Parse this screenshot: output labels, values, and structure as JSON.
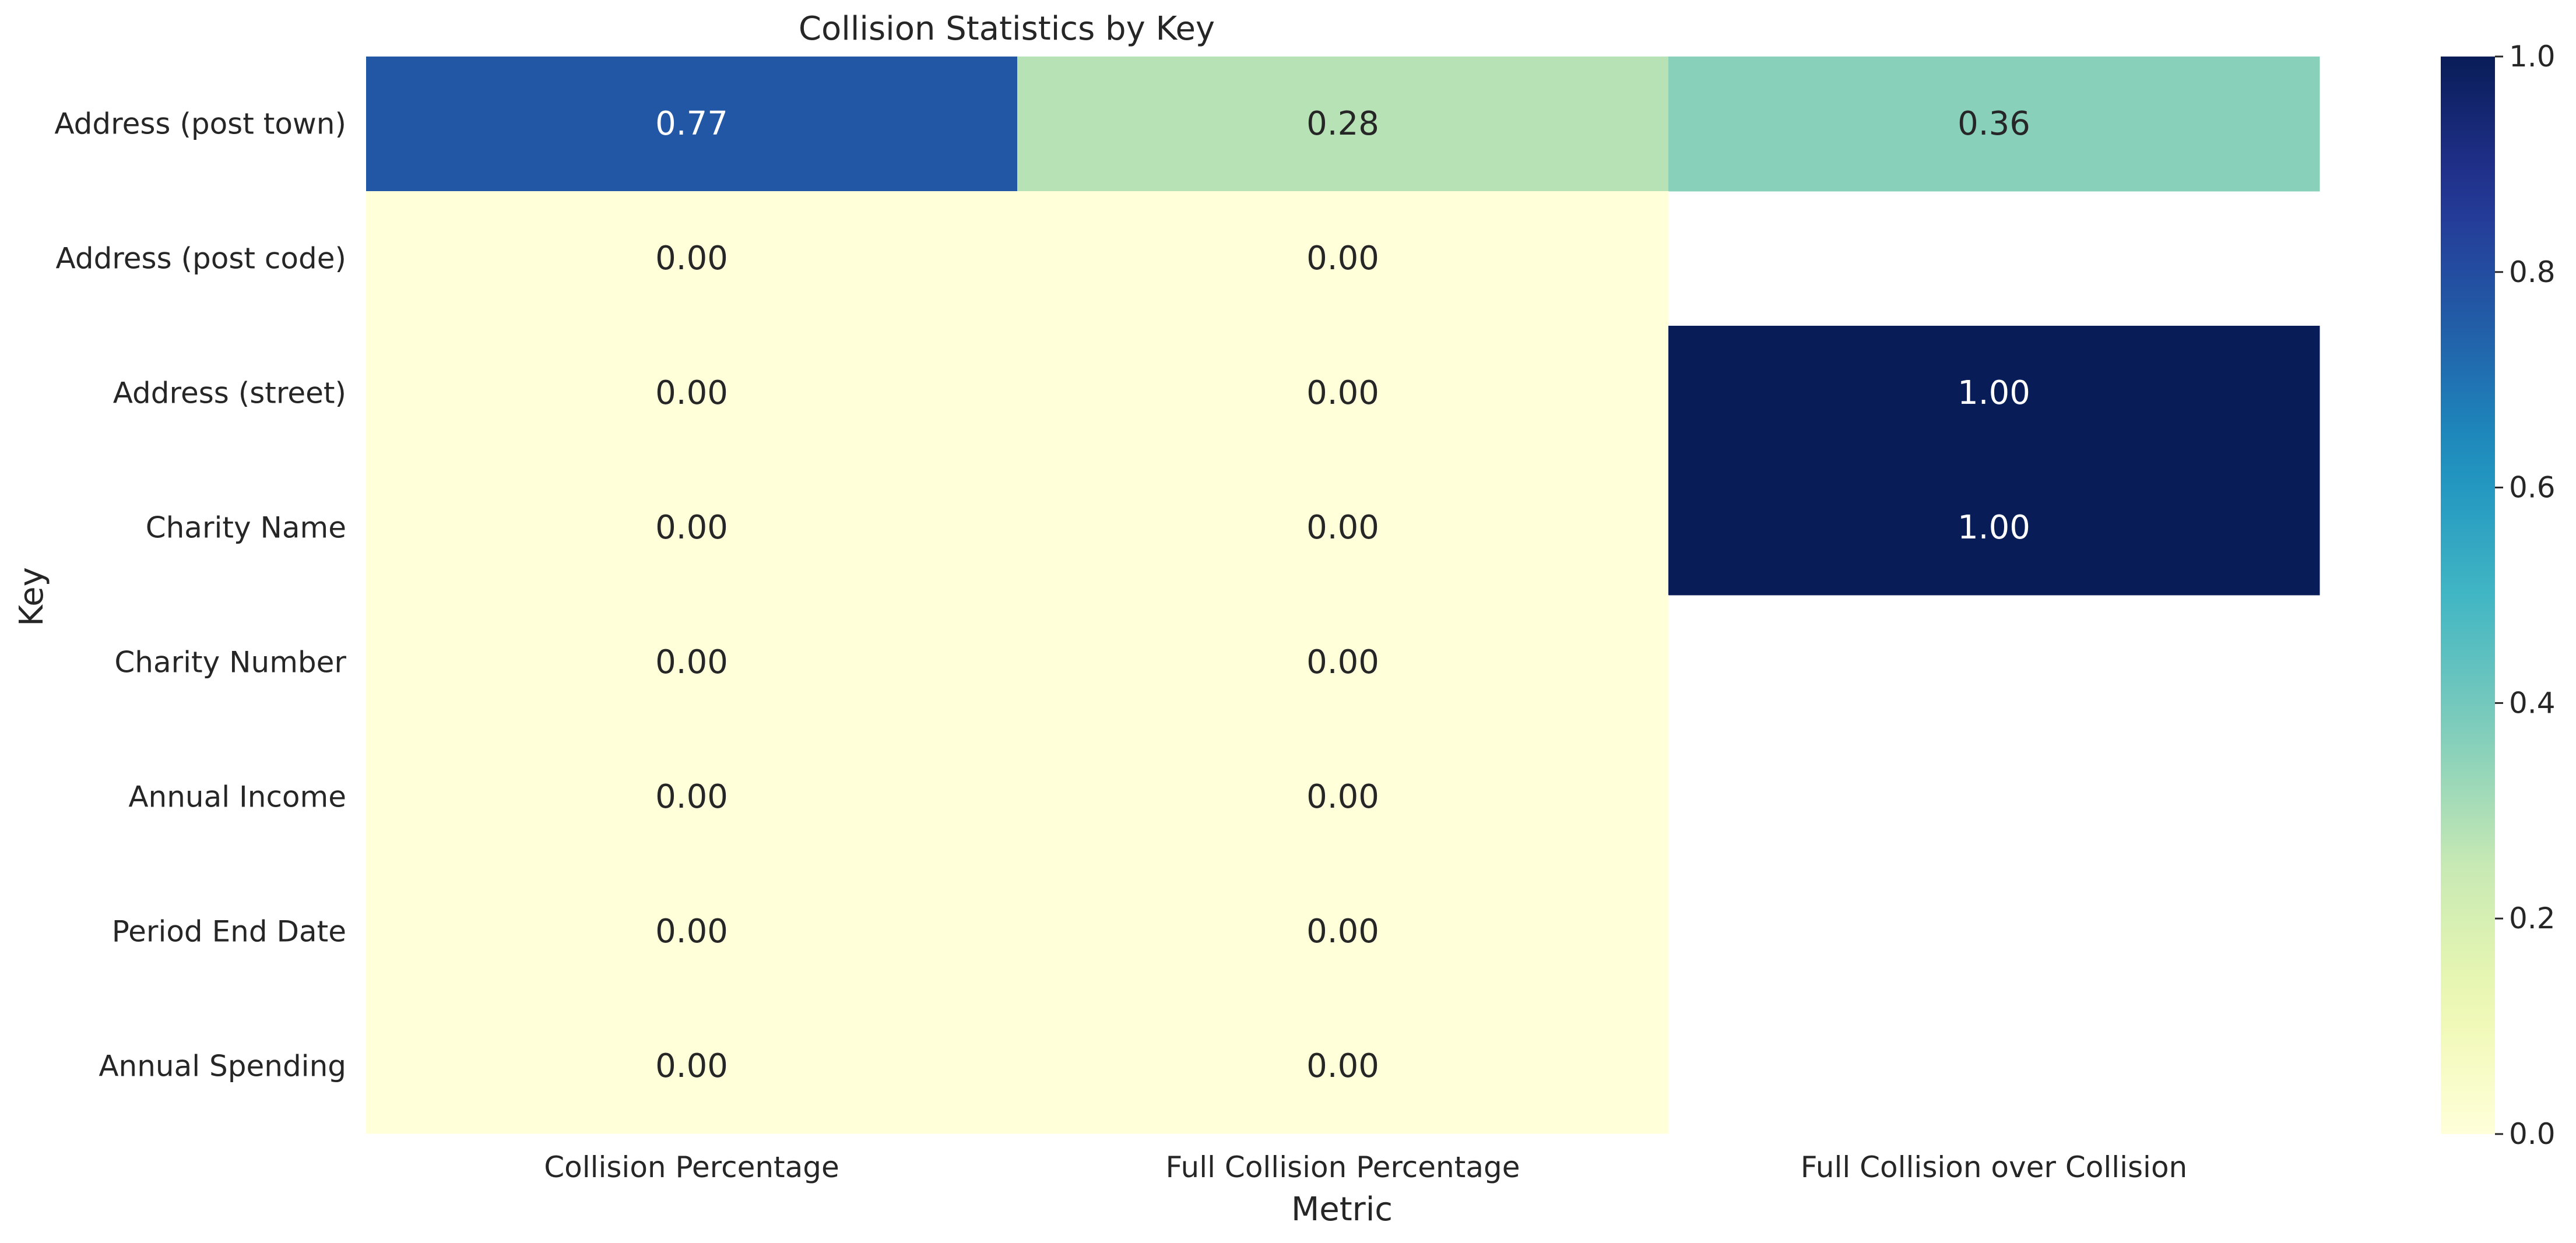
{
  "chart_data": {
    "type": "heatmap",
    "title": "Collision Statistics by Key",
    "xlabel": "Metric",
    "ylabel": "Key",
    "columns": [
      "Collision Percentage",
      "Full Collision Percentage",
      "Full Collision over Collision"
    ],
    "rows": [
      "Address (post town)",
      "Address (post code)",
      "Address (street)",
      "Charity Name",
      "Charity Number",
      "Annual Income",
      "Period End Date",
      "Annual Spending"
    ],
    "values": [
      [
        0.77,
        0.28,
        0.36
      ],
      [
        0.0,
        0.0,
        null
      ],
      [
        0.0,
        0.0,
        1.0
      ],
      [
        0.0,
        0.0,
        1.0
      ],
      [
        0.0,
        0.0,
        null
      ],
      [
        0.0,
        0.0,
        null
      ],
      [
        0.0,
        0.0,
        null
      ],
      [
        0.0,
        0.0,
        null
      ]
    ],
    "value_format": "0.00",
    "colormap": "YlGnBu",
    "vmin": 0.0,
    "vmax": 1.0,
    "colorbar_ticks": [
      "0.0",
      "0.2",
      "0.4",
      "0.6",
      "0.8",
      "1.0"
    ],
    "missing_cells": "blank",
    "grid": false
  },
  "colors": {
    "text": "#262626",
    "background": "#ffffff",
    "annotation_light": "#ffffff",
    "annotation_dark": "#262626"
  }
}
